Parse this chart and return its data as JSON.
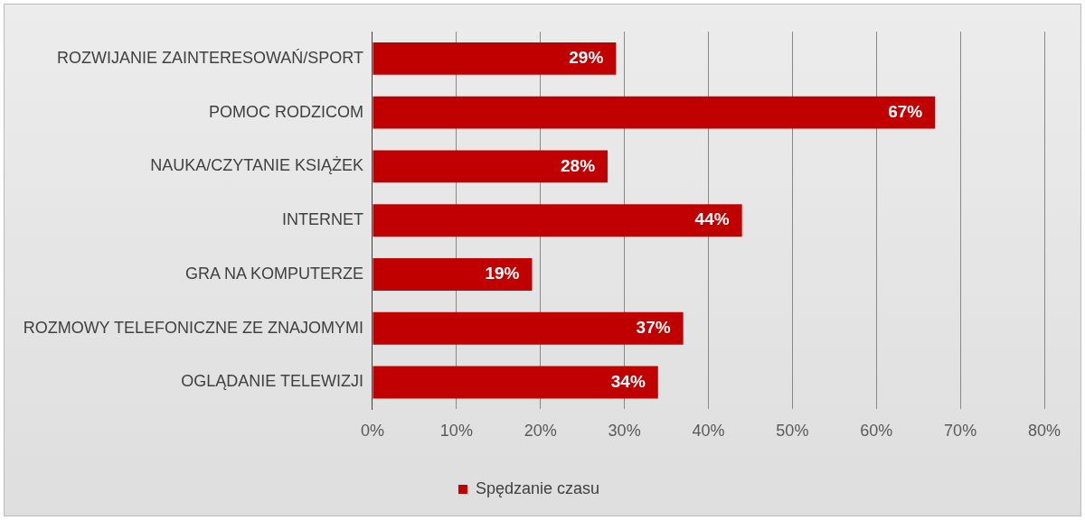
{
  "chart_data": {
    "type": "bar",
    "orientation": "horizontal",
    "categories": [
      "ROZWIJANIE ZAINTERESOWAŃ/SPORT",
      "POMOC RODZICOM",
      "NAUKA/CZYTANIE KSIĄŻEK",
      "INTERNET",
      "GRA NA KOMPUTERZE",
      "ROZMOWY TELEFONICZNE ZE ZNAJOMYMI",
      "OGLĄDANIE TELEWIZJI"
    ],
    "series": [
      {
        "name": "Spędzanie czasu",
        "color": "#c00000",
        "values": [
          29,
          67,
          28,
          44,
          19,
          37,
          34
        ],
        "value_labels": [
          "29%",
          "67%",
          "28%",
          "44%",
          "19%",
          "37%",
          "34%"
        ]
      }
    ],
    "xlim": [
      0,
      80
    ],
    "xticks": [
      {
        "value": 0,
        "label": "0%"
      },
      {
        "value": 10,
        "label": "10%"
      },
      {
        "value": 20,
        "label": "20%"
      },
      {
        "value": 30,
        "label": "30%"
      },
      {
        "value": 40,
        "label": "40%"
      },
      {
        "value": 50,
        "label": "50%"
      },
      {
        "value": 60,
        "label": "60%"
      },
      {
        "value": 70,
        "label": "70%"
      },
      {
        "value": 80,
        "label": "80%"
      }
    ],
    "grid": "x",
    "legend": "bottom"
  }
}
